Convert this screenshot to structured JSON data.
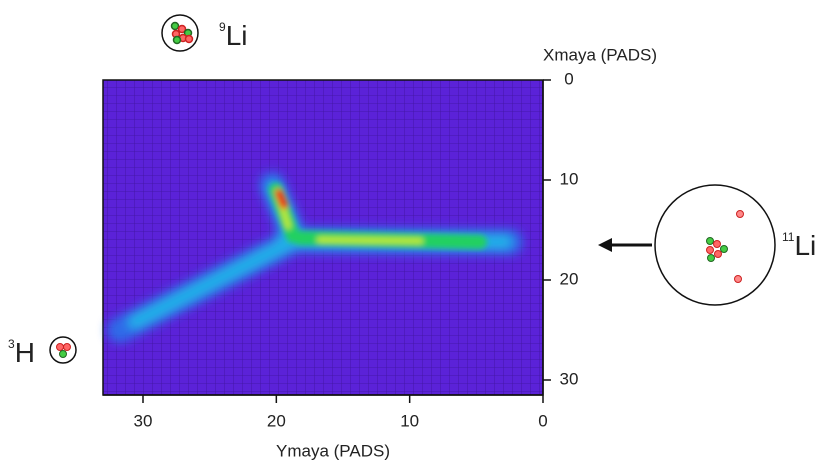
{
  "chart_data": {
    "type": "track",
    "xlabel": "Ymaya (PADS)",
    "ylabel": "Xmaya (PADS)",
    "xlim": [
      33,
      0
    ],
    "xticks": [
      30,
      20,
      10,
      0
    ],
    "ylim": [
      0,
      31.5
    ],
    "yticks": [
      0,
      10,
      20,
      30
    ],
    "annotations": [
      {
        "mass": "9",
        "element": "Li"
      },
      {
        "mass": "11",
        "element": "Li"
      },
      {
        "mass": "3",
        "element": "H"
      }
    ]
  }
}
